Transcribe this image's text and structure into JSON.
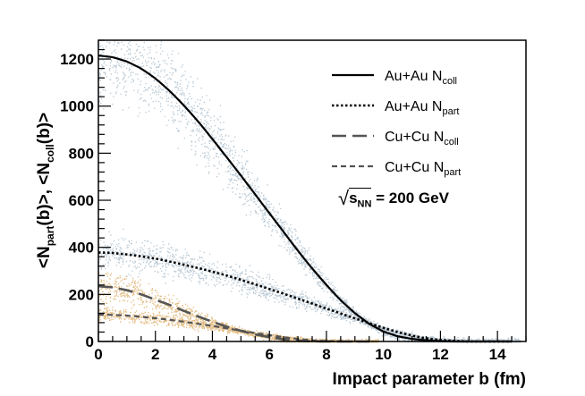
{
  "chart_data": {
    "type": "line",
    "title": "",
    "xlabel": "Impact parameter b (fm)",
    "ylabel": {
      "part1": "<N",
      "part1_sub": "part",
      "part2": "(b)>,  <N",
      "part2_sub": "coll",
      "part3": "(b)>"
    },
    "xlim": [
      0,
      15
    ],
    "ylim": [
      0,
      1280
    ],
    "xticks": [
      "0",
      "2",
      "4",
      "6",
      "8",
      "10",
      "12",
      "14"
    ],
    "yticks": [
      "0",
      "200",
      "400",
      "600",
      "800",
      "1000",
      "1200"
    ],
    "annotation": {
      "sqrt": "√",
      "s": "s",
      "s_sub": "NN",
      "text": " = 200 GeV"
    },
    "series": [
      {
        "name": "Au+Au N_coll",
        "legend_main": "Au+Au N",
        "legend_sub": "coll",
        "style": "solid",
        "color": "#000000",
        "x": [
          0,
          0.5,
          1,
          1.5,
          2,
          2.5,
          3,
          3.5,
          4,
          4.5,
          5,
          5.5,
          6,
          6.5,
          7,
          7.5,
          8,
          8.5,
          9,
          9.5,
          10,
          10.5,
          11,
          11.5,
          12,
          12.5,
          13,
          13.5,
          14,
          14.5
        ],
        "values": [
          1215,
          1208,
          1190,
          1160,
          1118,
          1065,
          1003,
          935,
          860,
          783,
          705,
          625,
          545,
          465,
          385,
          310,
          240,
          175,
          120,
          75,
          42,
          22,
          11,
          5,
          2,
          0,
          0,
          0,
          0,
          0
        ]
      },
      {
        "name": "Au+Au N_part",
        "legend_main": "Au+Au N",
        "legend_sub": "part",
        "style": "dotted",
        "color": "#000000",
        "x": [
          0,
          0.5,
          1,
          1.5,
          2,
          2.5,
          3,
          3.5,
          4,
          4.5,
          5,
          5.5,
          6,
          6.5,
          7,
          7.5,
          8,
          8.5,
          9,
          9.5,
          10,
          10.5,
          11,
          11.5,
          12,
          12.5,
          13,
          13.5,
          14,
          14.5
        ],
        "values": [
          378,
          376,
          370,
          362,
          352,
          340,
          326,
          312,
          297,
          280,
          262,
          243,
          223,
          203,
          182,
          161,
          140,
          119,
          98,
          78,
          58,
          40,
          25,
          13,
          6,
          2,
          0,
          0,
          0,
          0
        ]
      },
      {
        "name": "Cu+Cu N_coll",
        "legend_main": "Cu+Cu N",
        "legend_sub": "coll",
        "style": "longdash",
        "color": "#555555",
        "x": [
          0,
          0.5,
          1,
          1.5,
          2,
          2.5,
          3,
          3.5,
          4,
          4.5,
          5,
          5.5,
          6,
          6.5,
          7,
          7.5,
          8,
          8.5,
          9,
          9.5
        ],
        "values": [
          235,
          230,
          218,
          200,
          178,
          155,
          130,
          106,
          84,
          63,
          45,
          30,
          18,
          9,
          4,
          1,
          0,
          0,
          0,
          0
        ]
      },
      {
        "name": "Cu+Cu N_part",
        "legend_main": "Cu+Cu N",
        "legend_sub": "part",
        "style": "shortdash",
        "color": "#555555",
        "x": [
          0,
          0.5,
          1,
          1.5,
          2,
          2.5,
          3,
          3.5,
          4,
          4.5,
          5,
          5.5,
          6,
          6.5,
          7,
          7.5,
          8,
          8.5,
          9,
          9.5
        ],
        "values": [
          114,
          113,
          110,
          105,
          99,
          92,
          84,
          75,
          66,
          56,
          46,
          36,
          27,
          18,
          11,
          5,
          2,
          0,
          0,
          0
        ]
      }
    ],
    "scatter_bands": [
      {
        "name": "Au+Au N_coll event scatter",
        "color": "#b8c8d4",
        "follows": "Au+Au N_coll",
        "spread": 0.14
      },
      {
        "name": "Au+Au N_part event scatter",
        "color": "#b8c8d4",
        "follows": "Au+Au N_part",
        "spread": 0.18
      },
      {
        "name": "Cu+Cu N_coll event scatter",
        "color": "#e3bd84",
        "follows": "Cu+Cu N_coll",
        "spread": 0.25
      },
      {
        "name": "Cu+Cu N_part event scatter",
        "color": "#e3bd84",
        "follows": "Cu+Cu N_part",
        "spread": 0.25
      }
    ]
  }
}
